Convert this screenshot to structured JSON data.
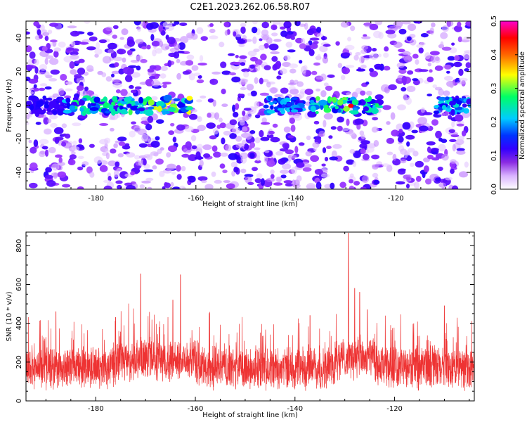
{
  "title": "C2E1.2023.262.06.58.R07",
  "chart_data": [
    {
      "type": "heatmap",
      "xlabel": "Height of straight line (km)",
      "ylabel": "Frequency (Hz)",
      "xlim": [
        -194,
        -105
      ],
      "ylim": [
        -50,
        50
      ],
      "xticks": [
        -180,
        -160,
        -140,
        -120
      ],
      "yticks": [
        -40,
        -20,
        0,
        20,
        40
      ],
      "colorbar": {
        "label": "Normalized spectral amplitude",
        "range": [
          0.0,
          0.5
        ],
        "ticks": [
          0.0,
          0.1,
          0.2,
          0.3,
          0.4,
          0.5
        ],
        "colormap": [
          "#ffffff",
          "#e6ccff",
          "#9933ff",
          "#4400ff",
          "#0000ff",
          "#00ccff",
          "#00ff66",
          "#ffff00",
          "#ff9900",
          "#ff0000",
          "#ff00cc"
        ]
      },
      "band": {
        "frequency": 0,
        "segments": [
          {
            "x_start": -194,
            "x_end": -186,
            "amplitude": 0.15
          },
          {
            "x_start": -186,
            "x_end": -175,
            "amplitude": 0.28
          },
          {
            "x_start": -175,
            "x_end": -169,
            "amplitude": 0.3
          },
          {
            "x_start": -169,
            "x_end": -161,
            "amplitude": 0.35
          },
          {
            "x_start": -146,
            "x_end": -138,
            "amplitude": 0.22
          },
          {
            "x_start": -137,
            "x_end": -129,
            "amplitude": 0.32
          },
          {
            "x_start": -129,
            "x_end": -123,
            "amplitude": 0.28
          },
          {
            "x_start": -112,
            "x_end": -105,
            "amplitude": 0.24
          }
        ],
        "peak": {
          "x": -129,
          "amplitude": 0.45
        }
      }
    },
    {
      "type": "line",
      "xlabel": "Height of straight line (km)",
      "ylabel": "SNR (10 * v/v)",
      "xlim": [
        -194,
        -104
      ],
      "ylim": [
        0,
        870
      ],
      "xticks": [
        -180,
        -160,
        -140,
        -120
      ],
      "yticks": [
        0,
        200,
        400,
        600,
        800
      ],
      "color": "#ee3333",
      "baseline": {
        "low": 80,
        "high": 260
      },
      "peaks": [
        {
          "x": -171,
          "value": 655
        },
        {
          "x": -163,
          "value": 650
        },
        {
          "x": -164.5,
          "value": 520
        },
        {
          "x": -176,
          "value": 430
        },
        {
          "x": -129.3,
          "value": 865
        },
        {
          "x": -128,
          "value": 580
        },
        {
          "x": -127,
          "value": 560
        },
        {
          "x": -125.5,
          "value": 470
        },
        {
          "x": -110,
          "value": 490
        },
        {
          "x": -137,
          "value": 440
        },
        {
          "x": -188,
          "value": 460
        }
      ]
    }
  ]
}
